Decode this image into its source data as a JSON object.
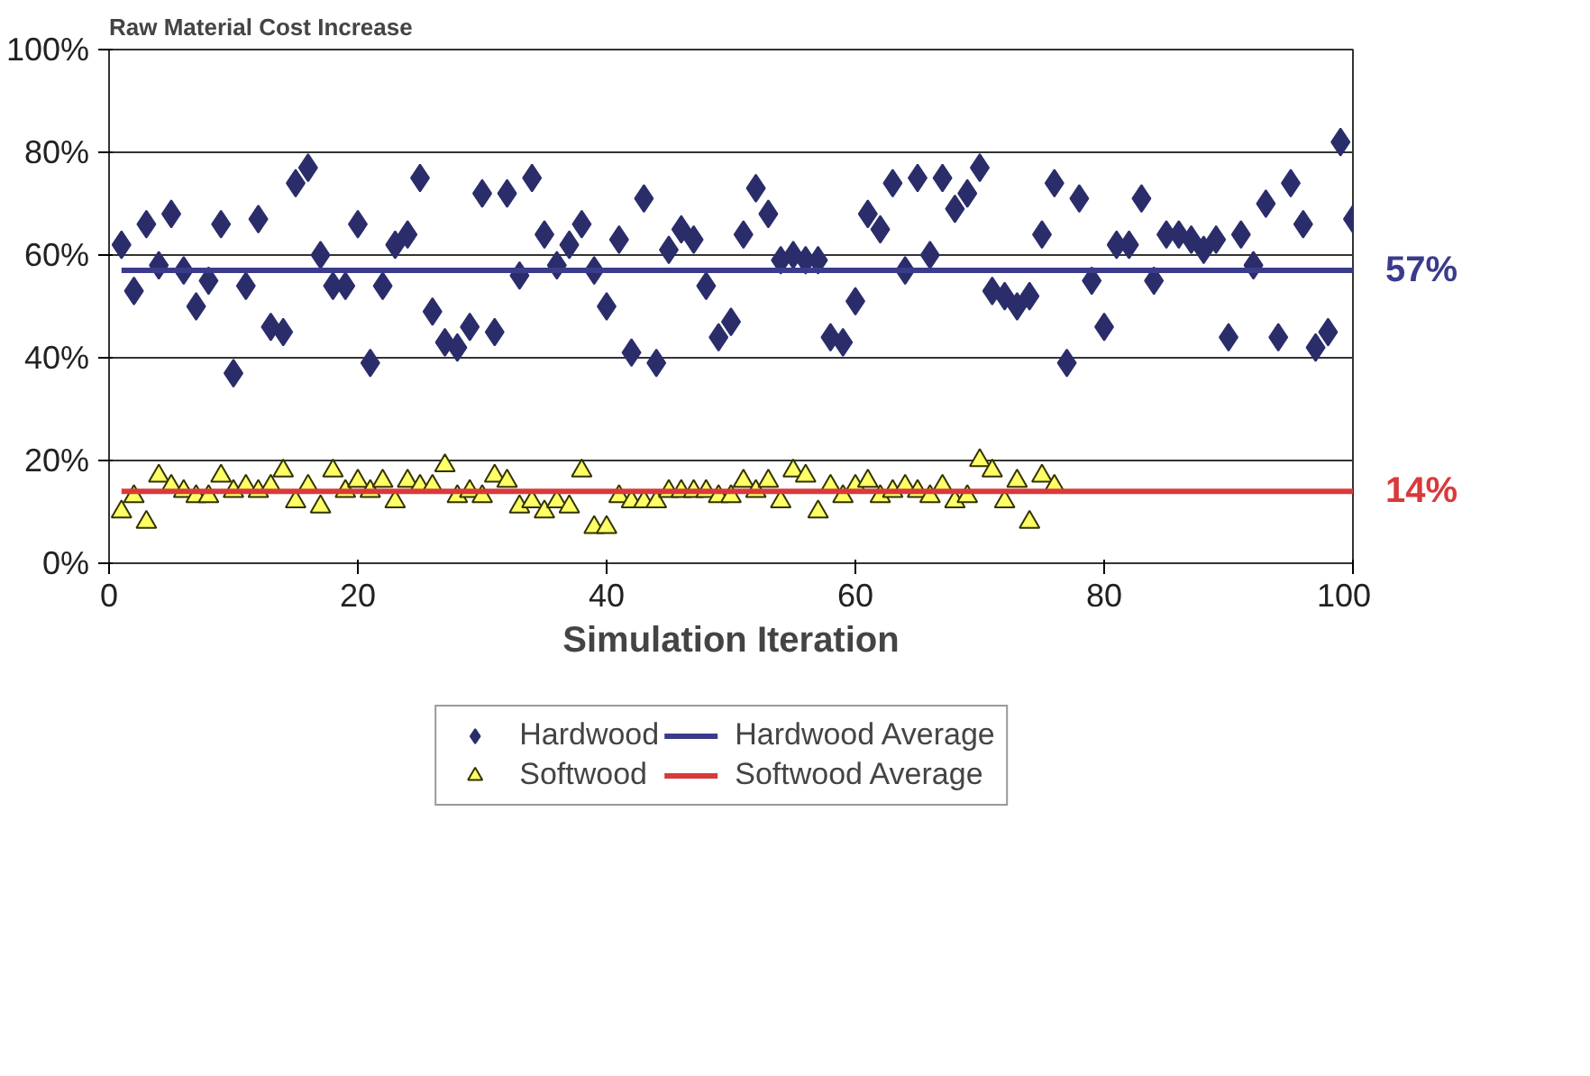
{
  "chart_data": {
    "type": "scatter",
    "title": "Raw Material Cost Increase",
    "xlabel": "Simulation Iteration",
    "xlim": [
      0,
      100
    ],
    "xticks": [
      0,
      20,
      40,
      60,
      80,
      100
    ],
    "ylim": [
      0,
      100
    ],
    "yticks": [
      {
        "value": 0,
        "label": "0%"
      },
      {
        "value": 20,
        "label": "20%"
      },
      {
        "value": 40,
        "label": "40%"
      },
      {
        "value": 60,
        "label": "60%"
      },
      {
        "value": 80,
        "label": "80%"
      },
      {
        "value": 100,
        "label": "100%"
      }
    ],
    "grid": "y",
    "legend": "bottom",
    "series": [
      {
        "name": "Hardwood",
        "type": "scatter",
        "marker": "diamond",
        "color": "#2b2d6b",
        "x": [
          1,
          2,
          3,
          4,
          5,
          6,
          7,
          8,
          9,
          10,
          11,
          12,
          13,
          14,
          15,
          16,
          17,
          18,
          19,
          20,
          21,
          22,
          23,
          24,
          25,
          26,
          27,
          28,
          29,
          30,
          31,
          32,
          33,
          34,
          35,
          36,
          37,
          38,
          39,
          40,
          41,
          42,
          43,
          44,
          45,
          46,
          47,
          48,
          49,
          50,
          51,
          52,
          53,
          54,
          55,
          56,
          57,
          58,
          59,
          60,
          61,
          62,
          63,
          64,
          65,
          66,
          67,
          68,
          69,
          70,
          71,
          72,
          73,
          74,
          75,
          76,
          77,
          78,
          79,
          80,
          81,
          82,
          83,
          84,
          85,
          86,
          87,
          88,
          89,
          90,
          91,
          92,
          93,
          94,
          95,
          96,
          97,
          98,
          99,
          100
        ],
        "values": [
          62,
          53,
          66,
          58,
          68,
          57,
          50,
          55,
          66,
          37,
          54,
          67,
          46,
          45,
          74,
          77,
          60,
          54,
          54,
          66,
          39,
          54,
          62,
          64,
          75,
          49,
          43,
          42,
          46,
          72,
          45,
          72,
          56,
          75,
          64,
          58,
          62,
          66,
          57,
          50,
          63,
          41,
          71,
          39,
          61,
          65,
          63,
          54,
          44,
          47,
          64,
          73,
          68,
          59,
          60,
          59,
          59,
          44,
          43,
          51,
          68,
          65,
          74,
          57,
          75,
          60,
          75,
          69,
          72,
          77,
          53,
          52,
          50,
          52,
          64,
          74,
          39,
          71,
          55,
          46,
          62,
          62,
          71,
          55,
          64,
          64,
          63,
          61,
          63,
          44,
          64,
          58,
          70,
          44,
          74,
          66,
          42,
          45,
          82,
          67
        ]
      },
      {
        "name": "Softwood",
        "type": "scatter",
        "marker": "triangle",
        "color": "#ffff66",
        "x": [
          1,
          2,
          3,
          4,
          5,
          6,
          7,
          8,
          9,
          10,
          11,
          12,
          13,
          14,
          15,
          16,
          17,
          18,
          19,
          20,
          21,
          22,
          23,
          24,
          25,
          26,
          27,
          28,
          29,
          30,
          31,
          32,
          33,
          34,
          35,
          36,
          37,
          38,
          39,
          40,
          41,
          42,
          43,
          44,
          45,
          46,
          47,
          48,
          49,
          50,
          51,
          52,
          53,
          54,
          55,
          56,
          57,
          58,
          59,
          60,
          61,
          62,
          63,
          64,
          65,
          66,
          67,
          68,
          69,
          70,
          71,
          72,
          73,
          74,
          75,
          76
        ],
        "values": [
          10,
          13,
          8,
          17,
          15,
          14,
          13,
          13,
          17,
          14,
          15,
          14,
          15,
          18,
          12,
          15,
          11,
          18,
          14,
          16,
          14,
          16,
          12,
          16,
          15,
          15,
          19,
          13,
          14,
          13,
          17,
          16,
          11,
          12,
          10,
          12,
          11,
          18,
          7,
          7,
          13,
          12,
          12,
          12,
          14,
          14,
          14,
          14,
          13,
          13,
          16,
          14,
          16,
          12,
          18,
          17,
          10,
          15,
          13,
          15,
          16,
          13,
          14,
          15,
          14,
          13,
          15,
          12,
          13,
          20,
          18,
          12,
          16,
          8,
          17,
          15
        ]
      },
      {
        "name": "Hardwood Average",
        "type": "line",
        "color": "#3b3b8c",
        "x": [
          1,
          100
        ],
        "values": [
          57,
          57
        ]
      },
      {
        "name": "Softwood Average",
        "type": "line",
        "color": "#d83a3a",
        "x": [
          1,
          100
        ],
        "values": [
          14,
          14
        ]
      }
    ],
    "annotations": [
      {
        "text": "57%",
        "x": 100,
        "y": 57
      },
      {
        "text": "14%",
        "x": 100,
        "y": 14
      }
    ]
  }
}
